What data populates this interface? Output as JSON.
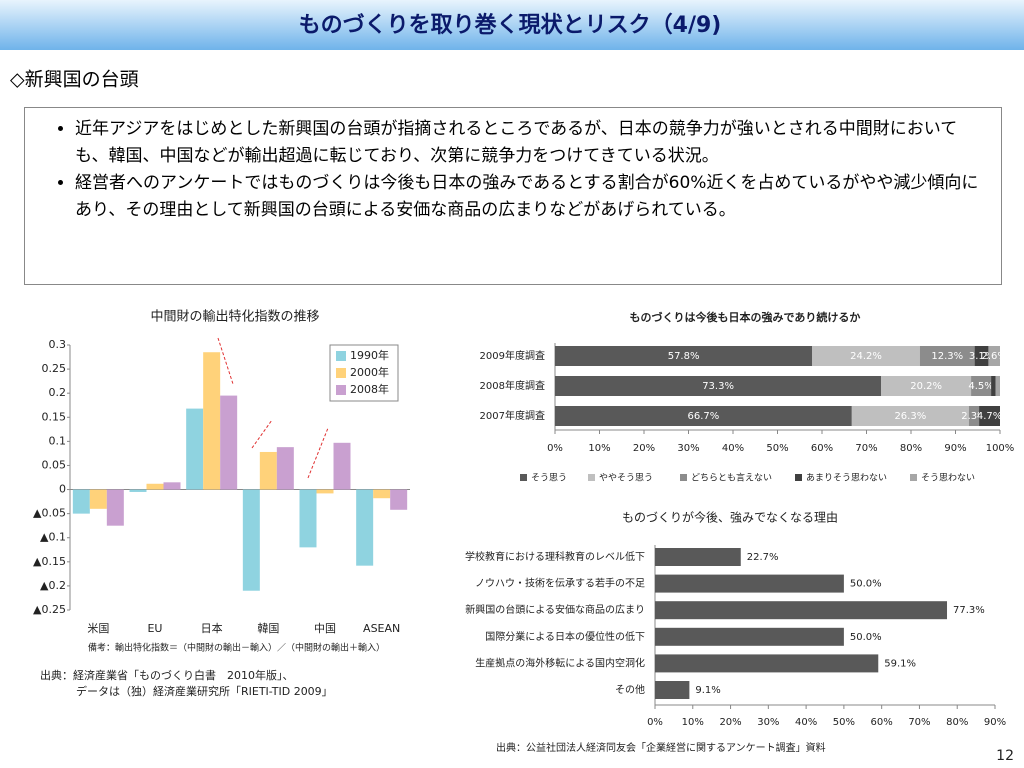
{
  "header": {
    "title": "ものづくりを取り巻く現状とリスク（4/9)"
  },
  "subtitle": "◇新興国の台頭",
  "bullets": [
    "近年アジアをはじめとした新興国の台頭が指摘されるところであるが、日本の競争力が強いとされる中間財においても、韓国、中国などが輸出超過に転じており、次第に競争力をつけてきている状況。",
    "経営者へのアンケートではものづくりは今後も日本の強みであるとする割合が60%近くを占めているがやや減少傾向にあり、その理由として新興国の台頭による安価な商品の広まりなどがあげられている。"
  ],
  "chart_data": [
    {
      "type": "bar",
      "title": "中間財の輸出特化指数の推移",
      "note": "備考：輸出特化指数＝（中間財の輸出－輸入）／（中間財の輸出＋輸入）",
      "categories": [
        "米国",
        "EU",
        "日本",
        "韓国",
        "中国",
        "ASEAN"
      ],
      "series": [
        {
          "name": "1990年",
          "color": "#8fd3e0",
          "values": [
            -0.05,
            -0.005,
            0.168,
            -0.21,
            -0.12,
            -0.158
          ]
        },
        {
          "name": "2000年",
          "color": "#ffd27a",
          "values": [
            -0.04,
            0.012,
            0.285,
            0.078,
            -0.008,
            -0.018
          ]
        },
        {
          "name": "2008年",
          "color": "#c9a0d0",
          "values": [
            -0.075,
            0.015,
            0.195,
            0.088,
            0.097,
            -0.042
          ]
        }
      ],
      "ylim": [
        -0.25,
        0.3
      ],
      "yticks": [
        0.3,
        0.25,
        0.2,
        0.15,
        0.1,
        0.05,
        0,
        {
          "value": -0.05,
          "label": "▲0.05"
        },
        {
          "value": -0.1,
          "label": "▲0.1"
        },
        {
          "value": -0.15,
          "label": "▲0.15"
        },
        {
          "value": -0.2,
          "label": "▲0.2"
        },
        {
          "value": -0.25,
          "label": "▲0.25"
        }
      ],
      "legend": "upper-right"
    },
    {
      "type": "stacked_barh",
      "title": "ものづくりは今後も日本の強みであり続けるか",
      "categories": [
        "2009年度調査",
        "2008年度調査",
        "2007年度調査"
      ],
      "series": [
        {
          "name": "そう思う",
          "color": "#595959",
          "values": [
            57.8,
            73.3,
            66.7
          ],
          "value_labels": [
            "57.8%",
            "73.3%",
            "66.7%"
          ]
        },
        {
          "name": "ややそう思う",
          "color": "#bfbfbf",
          "values": [
            24.2,
            20.2,
            26.3
          ],
          "value_labels": [
            "24.2%",
            "20.2%",
            "26.3%"
          ]
        },
        {
          "name": "どちらとも言えない",
          "color": "#8c8c8c",
          "values": [
            12.3,
            4.5,
            2.3
          ],
          "value_labels": [
            "12.3%",
            "4.5%",
            "2.3%"
          ]
        },
        {
          "name": "あまりそう思わない",
          "color": "#404040",
          "values": [
            3.1,
            1.0,
            4.7
          ],
          "value_labels": [
            "3.1%",
            null,
            "4.7%"
          ]
        },
        {
          "name": "そう思わない",
          "color": "#a6a6a6",
          "values": [
            2.6,
            1.0,
            0
          ],
          "value_labels": [
            "2.6%",
            null,
            null
          ]
        }
      ],
      "xlim": [
        0,
        100
      ],
      "xticks": [
        {
          "value": 0,
          "label": "0%"
        },
        {
          "value": 10,
          "label": "10%"
        },
        {
          "value": 20,
          "label": "20%"
        },
        {
          "value": 30,
          "label": "30%"
        },
        {
          "value": 40,
          "label": "40%"
        },
        {
          "value": 50,
          "label": "50%"
        },
        {
          "value": 60,
          "label": "60%"
        },
        {
          "value": 70,
          "label": "70%"
        },
        {
          "value": 80,
          "label": "80%"
        },
        {
          "value": 90,
          "label": "90%"
        },
        {
          "value": 100,
          "label": "100%"
        }
      ],
      "legend": "bottom"
    },
    {
      "type": "barh",
      "title": "ものづくりが今後、強みでなくなる理由",
      "categories": [
        "学校教育における理科教育のレベル低下",
        "ノウハウ・技術を伝承する若手の不足",
        "新興国の台頭による安価な商品の広まり",
        "国際分業による日本の優位性の低下",
        "生産拠点の海外移転による国内空洞化",
        "その他"
      ],
      "values": [
        22.7,
        50.0,
        77.3,
        50.0,
        59.1,
        9.1
      ],
      "value_labels": [
        "22.7%",
        "50.0%",
        "77.3%",
        "50.0%",
        "59.1%",
        "9.1%"
      ],
      "color": "#595959",
      "xlim": [
        0,
        90
      ],
      "xticks": [
        {
          "value": 0,
          "label": "0%"
        },
        {
          "value": 10,
          "label": "10%"
        },
        {
          "value": 20,
          "label": "20%"
        },
        {
          "value": 30,
          "label": "30%"
        },
        {
          "value": 40,
          "label": "40%"
        },
        {
          "value": 50,
          "label": "50%"
        },
        {
          "value": 60,
          "label": "60%"
        },
        {
          "value": 70,
          "label": "70%"
        },
        {
          "value": 80,
          "label": "80%"
        },
        {
          "value": 90,
          "label": "90%"
        }
      ]
    }
  ],
  "sources": [
    "出典：経済産業省「ものづくり白書　2010年版」、",
    "データは（独）経済産業研究所「RIETI-TID 2009」",
    "出典：公益社団法人経済同友会「企業経営に関するアンケート調査」資料"
  ],
  "page_number": "12"
}
